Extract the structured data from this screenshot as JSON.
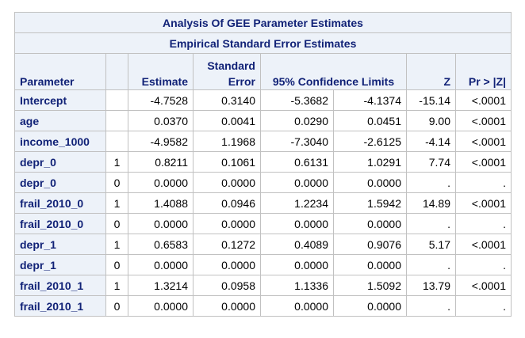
{
  "table": {
    "title": "Analysis Of GEE Parameter Estimates",
    "subtitle": "Empirical Standard Error Estimates",
    "headers": {
      "parameter": "Parameter",
      "level": "",
      "estimate": "Estimate",
      "std_error_line1": "Standard",
      "std_error_line2": "Error",
      "ci": "95% Confidence Limits",
      "z": "Z",
      "p": "Pr > |Z|"
    },
    "rows": [
      {
        "parameter": "Intercept",
        "level": "",
        "estimate": "-4.7528",
        "std_error": "0.3140",
        "lower": "-5.3682",
        "upper": "-4.1374",
        "z": "-15.14",
        "p": "<.0001"
      },
      {
        "parameter": "age",
        "level": "",
        "estimate": "0.0370",
        "std_error": "0.0041",
        "lower": "0.0290",
        "upper": "0.0451",
        "z": "9.00",
        "p": "<.0001"
      },
      {
        "parameter": "income_1000",
        "level": "",
        "estimate": "-4.9582",
        "std_error": "1.1968",
        "lower": "-7.3040",
        "upper": "-2.6125",
        "z": "-4.14",
        "p": "<.0001"
      },
      {
        "parameter": "depr_0",
        "level": "1",
        "estimate": "0.8211",
        "std_error": "0.1061",
        "lower": "0.6131",
        "upper": "1.0291",
        "z": "7.74",
        "p": "<.0001"
      },
      {
        "parameter": "depr_0",
        "level": "0",
        "estimate": "0.0000",
        "std_error": "0.0000",
        "lower": "0.0000",
        "upper": "0.0000",
        "z": ".",
        "p": "."
      },
      {
        "parameter": "frail_2010_0",
        "level": "1",
        "estimate": "1.4088",
        "std_error": "0.0946",
        "lower": "1.2234",
        "upper": "1.5942",
        "z": "14.89",
        "p": "<.0001"
      },
      {
        "parameter": "frail_2010_0",
        "level": "0",
        "estimate": "0.0000",
        "std_error": "0.0000",
        "lower": "0.0000",
        "upper": "0.0000",
        "z": ".",
        "p": "."
      },
      {
        "parameter": "depr_1",
        "level": "1",
        "estimate": "0.6583",
        "std_error": "0.1272",
        "lower": "0.4089",
        "upper": "0.9076",
        "z": "5.17",
        "p": "<.0001"
      },
      {
        "parameter": "depr_1",
        "level": "0",
        "estimate": "0.0000",
        "std_error": "0.0000",
        "lower": "0.0000",
        "upper": "0.0000",
        "z": ".",
        "p": "."
      },
      {
        "parameter": "frail_2010_1",
        "level": "1",
        "estimate": "1.3214",
        "std_error": "0.0958",
        "lower": "1.1336",
        "upper": "1.5092",
        "z": "13.79",
        "p": "<.0001"
      },
      {
        "parameter": "frail_2010_1",
        "level": "0",
        "estimate": "0.0000",
        "std_error": "0.0000",
        "lower": "0.0000",
        "upper": "0.0000",
        "z": ".",
        "p": "."
      }
    ]
  },
  "colors": {
    "header_bg": "#edf2f9",
    "header_text": "#112277",
    "border": "#c1c1c1",
    "cell_text": "#000000"
  }
}
